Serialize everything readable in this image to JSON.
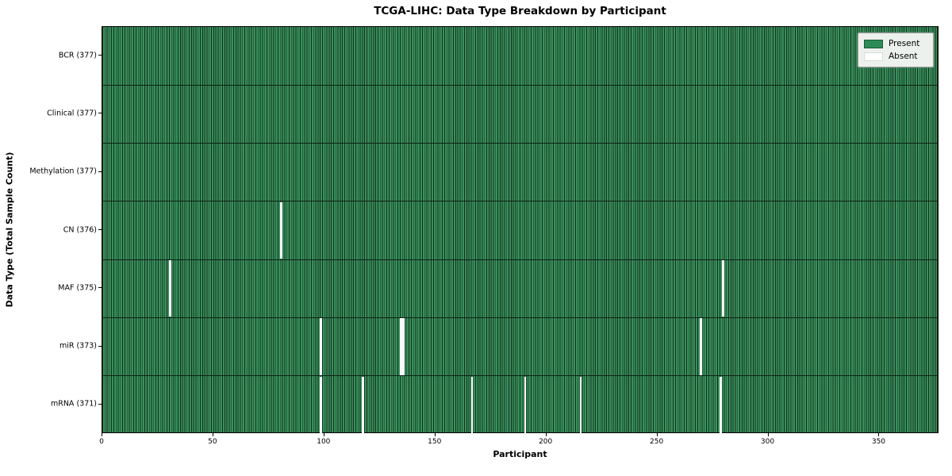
{
  "chart_data": {
    "type": "heatmap",
    "title": "TCGA-LIHC: Data Type Breakdown by Participant",
    "xlabel": "Participant",
    "ylabel": "Data Type (Total Sample Count)",
    "xlim": [
      0,
      377
    ],
    "n_participants": 377,
    "x_ticks": [
      0,
      50,
      100,
      150,
      200,
      250,
      300,
      350
    ],
    "grid": "per-cell vertical borders, black row dividers",
    "legend_position": "upper right",
    "legend": {
      "entries": [
        {
          "label": "Present",
          "color": "#2e8b57"
        },
        {
          "label": "Absent",
          "color": "#ffffff"
        }
      ]
    },
    "colors": {
      "present_fill": "#38905c",
      "cell_border": "#142f1e",
      "absent_fill": "#fcfcfc",
      "axes_frame": "#000000",
      "legend_background": "#edf1ed"
    },
    "rows": [
      {
        "label": "BCR (377)",
        "data_type": "BCR",
        "total_sample_count": 377,
        "absent_participants": []
      },
      {
        "label": "Clinical (377)",
        "data_type": "Clinical",
        "total_sample_count": 377,
        "absent_participants": []
      },
      {
        "label": "Methylation (377)",
        "data_type": "Methylation",
        "total_sample_count": 377,
        "absent_participants": []
      },
      {
        "label": "CN (376)",
        "data_type": "CN",
        "total_sample_count": 376,
        "absent_participants": [
          80
        ]
      },
      {
        "label": "MAF (375)",
        "data_type": "MAF",
        "total_sample_count": 375,
        "absent_participants": [
          30,
          279
        ]
      },
      {
        "label": "miR (373)",
        "data_type": "miR",
        "total_sample_count": 373,
        "absent_participants": [
          98,
          134,
          135,
          269
        ]
      },
      {
        "label": "mRNA (371)",
        "data_type": "mRNA",
        "total_sample_count": 371,
        "absent_participants": [
          98,
          117,
          166,
          190,
          215,
          278
        ]
      }
    ]
  }
}
